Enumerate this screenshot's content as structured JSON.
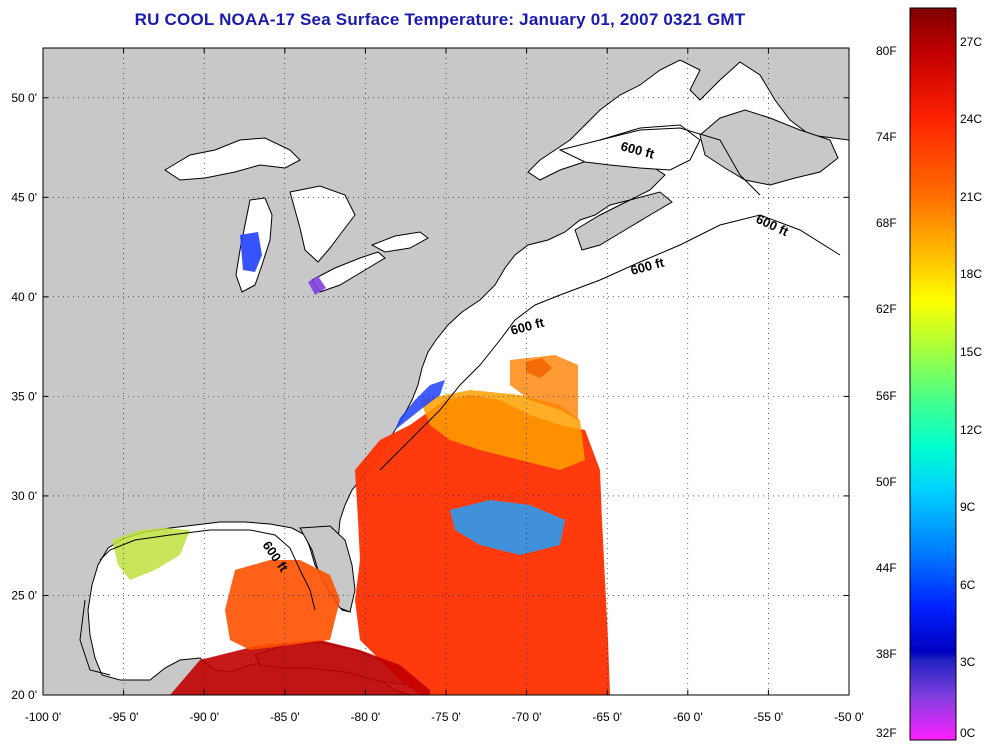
{
  "title": "RU COOL  NOAA-17  Sea Surface Temperature:  January 01, 2007 0321 GMT",
  "map": {
    "lon_range": [
      -100,
      -50
    ],
    "lat_range": [
      20,
      52.5
    ],
    "lon_ticks": [
      {
        "value": -100,
        "label": "-100 0'"
      },
      {
        "value": -95,
        "label": "-95 0'"
      },
      {
        "value": -90,
        "label": "-90 0'"
      },
      {
        "value": -85,
        "label": "-85 0'"
      },
      {
        "value": -80,
        "label": "-80 0'"
      },
      {
        "value": -75,
        "label": "-75 0'"
      },
      {
        "value": -70,
        "label": "-70 0'"
      },
      {
        "value": -65,
        "label": "-65 0'"
      },
      {
        "value": -60,
        "label": "-60 0'"
      },
      {
        "value": -55,
        "label": "-55 0'"
      },
      {
        "value": -50,
        "label": "-50 0'"
      }
    ],
    "lat_ticks": [
      {
        "value": 50,
        "label": "50 0'"
      },
      {
        "value": 45,
        "label": "45 0'"
      },
      {
        "value": 40,
        "label": "40 0'"
      },
      {
        "value": 35,
        "label": "35 0'"
      },
      {
        "value": 30,
        "label": "30 0'"
      },
      {
        "value": 25,
        "label": "25 0'"
      },
      {
        "value": 20,
        "label": "20 0'"
      }
    ],
    "contour_labels": [
      "600 ft",
      "600 ft",
      "600 ft",
      "600 ft",
      "600 ft"
    ],
    "grid": "dotted",
    "colors": {
      "land": "#c8c8c8",
      "no_data_ocean": "#ffffff",
      "coast": "#000000"
    }
  },
  "colorbar": {
    "fahrenheit_labels": [
      "80F",
      "74F",
      "68F",
      "62F",
      "56F",
      "50F",
      "44F",
      "38F",
      "32F"
    ],
    "celsius_labels": [
      "27C",
      "24C",
      "21C",
      "18C",
      "15C",
      "12C",
      "9C",
      "6C",
      "3C",
      "0C"
    ],
    "fahrenheit_range": [
      32,
      83
    ],
    "celsius_range": [
      0,
      28.3
    ],
    "colors_top_to_bottom": [
      "#800000",
      "#cc0000",
      "#ff2000",
      "#ff7000",
      "#ffc000",
      "#ffff00",
      "#a0ff40",
      "#40ff90",
      "#00ffd0",
      "#00d0ff",
      "#0080ff",
      "#0020ff",
      "#2020c0",
      "#8040e0",
      "#ff20ff"
    ]
  }
}
